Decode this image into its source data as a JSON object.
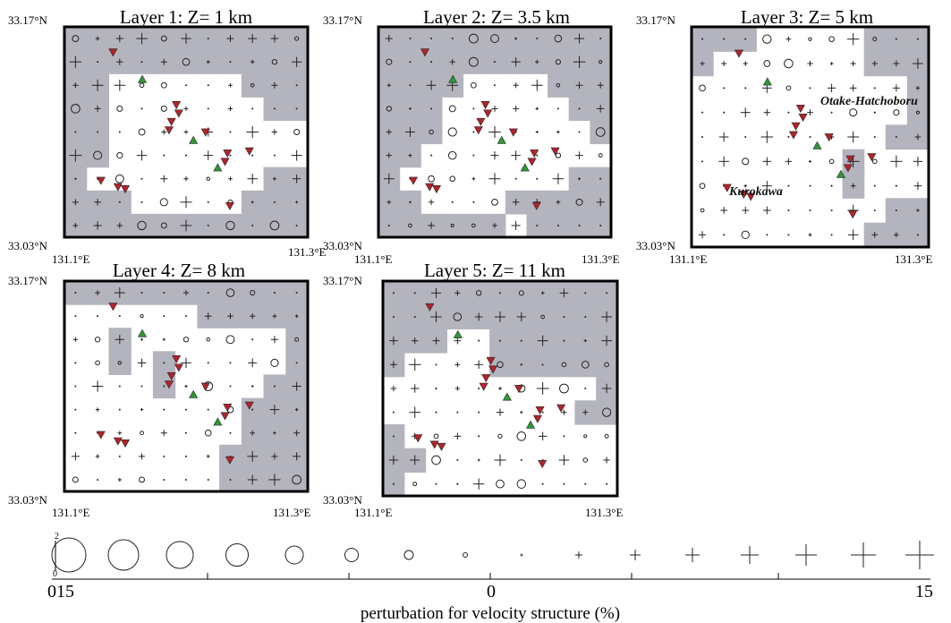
{
  "colors": {
    "masked": "#b4b4be",
    "frame": "#000000",
    "volcano_marker": "#2f9a35",
    "station_marker": "#b3242a"
  },
  "panels": [
    {
      "title": "Layer 1: Z= 1   km",
      "lat_top": "33.17°N",
      "lat_bottom": "33.03°N",
      "lon_left": "131.1°E",
      "lon_right": "131.3°E",
      "mask": [
        "11111111111",
        "11111111111",
        "11000000111",
        "11000000011",
        "11000000000",
        "11000000000",
        "10000000011",
        "11100000111",
        "11111111111"
      ]
    },
    {
      "title": "Layer 2: Z= 3.5 km",
      "lat_top": "33.17°N",
      "lat_bottom": "33.03°N",
      "lon_left": "131.1°E",
      "lon_right": "131.3°E",
      "mask": [
        "11111111111",
        "11111111111",
        "11110000111",
        "11100000011",
        "11100000001",
        "11000000000",
        "10000000011",
        "11000011111",
        "11111101111"
      ]
    },
    {
      "title": "Layer 3: Z= 5   km",
      "lat_top": "33.17°N",
      "lat_bottom": "33.03°N",
      "lon_left": "131.1°E",
      "lon_right": "131.3°E",
      "mask": [
        "11100000111",
        "10000000111",
        "00000000001",
        "00000000001",
        "00000000011",
        "00000001000",
        "00000001000",
        "00000000011",
        "00000000111"
      ]
    },
    {
      "title": "Layer 4: Z= 8   km",
      "lat_top": "33.17°N",
      "lat_bottom": "33.03°N",
      "lon_left": "131.1°E",
      "lon_right": "131.3°E",
      "mask": [
        "11111111111",
        "00000011111",
        "00100000001",
        "00101000001",
        "00001000011",
        "00000000111",
        "00000000111",
        "00000001111",
        "00000001111"
      ]
    },
    {
      "title": "Layer 5: Z= 11  km",
      "lat_top": "33.17°N",
      "lat_bottom": "33.03°N",
      "lon_left": "131.1°E",
      "lon_right": "131.3°E",
      "mask": [
        "11111111111",
        "11111111111",
        "11100111111",
        "10000111111",
        "00000000001",
        "00000000011",
        "10000000000",
        "11000000000",
        "10000000000"
      ]
    }
  ],
  "annotations": {
    "otake": "Otake-Hatchoboru",
    "kurokawa": "Kurokawa"
  },
  "legend": {
    "scale_top": "2",
    "scale_bottom": "0",
    "left_label": "015",
    "center_label": "0",
    "right_label": "15",
    "axis_label": "perturbation for velocity structure (%)"
  }
}
